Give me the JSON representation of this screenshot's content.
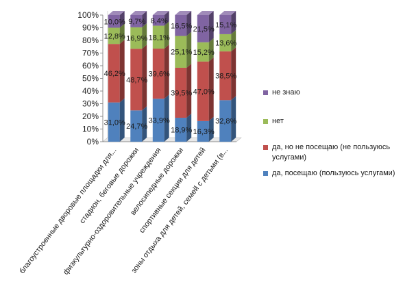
{
  "chart_data": {
    "type": "bar",
    "stacked": true,
    "percent_stacked": true,
    "three_d": true,
    "categories": [
      "благоустроенные дворовые площадки для...",
      "стадион, беговые дорожки",
      "физкультурно-оздоровительные учреждения",
      "велосипедные дорожки",
      "спортивные секции для детей",
      "зоны отдыха для детей, семей с детьми (в..."
    ],
    "series": [
      {
        "name": "да, посещаю (пользуюсь услугами)",
        "color": "#4F81BD",
        "values": [
          31.0,
          24.7,
          33.9,
          18.9,
          16.3,
          32.8
        ],
        "labels": [
          "31,0%",
          "24,7%",
          "33,9%",
          "18,9%",
          "16,3%",
          "32,8%"
        ]
      },
      {
        "name": "да, но не посещаю (не пользуюсь услугами)",
        "color": "#C0504D",
        "values": [
          46.2,
          48.7,
          39.6,
          39.5,
          47.0,
          38.5
        ],
        "labels": [
          "46,2%",
          "48,7%",
          "39,6%",
          "39,5%",
          "47,0%",
          "38,5%"
        ]
      },
      {
        "name": "нет",
        "color": "#9BBB59",
        "values": [
          12.8,
          16.9,
          18.1,
          25.1,
          15.2,
          13.6
        ],
        "labels": [
          "12,8%",
          "16,9%",
          "18,1%",
          "25,1%",
          "15,2%",
          "13,6%"
        ]
      },
      {
        "name": "не знаю",
        "color": "#8064A2",
        "values": [
          10.0,
          9.7,
          8.4,
          16.5,
          21.5,
          15.1
        ],
        "labels": [
          "10,0%",
          "9,7%",
          "8,4%",
          "16,5%",
          "21,5%",
          "15,1%"
        ]
      }
    ],
    "ylim": [
      0,
      100
    ],
    "y_ticks": [
      "0%",
      "10%",
      "20%",
      "30%",
      "40%",
      "50%",
      "60%",
      "70%",
      "80%",
      "90%",
      "100%"
    ],
    "xlabel": "",
    "ylabel": "",
    "grid": false,
    "legend_position": "right"
  }
}
